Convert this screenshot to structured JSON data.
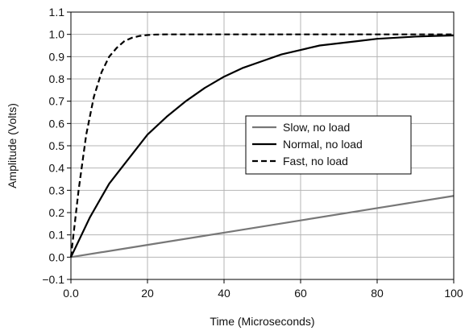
{
  "chart_data": {
    "type": "line",
    "title": "",
    "xlabel": "Time (Microseconds)",
    "ylabel": "Amplitude (Volts)",
    "xlim": [
      0,
      100
    ],
    "ylim": [
      -0.1,
      1.1
    ],
    "xticks": [
      0,
      20,
      40,
      60,
      80,
      100
    ],
    "xtick_labels": [
      "0.0",
      "20",
      "40",
      "60",
      "80",
      "100"
    ],
    "yticks": [
      -0.1,
      0.0,
      0.1,
      0.2,
      0.3,
      0.4,
      0.5,
      0.6,
      0.7,
      0.8,
      0.9,
      1.0,
      1.1
    ],
    "ytick_labels": [
      "−0.1",
      "0.0",
      "0.1",
      "0.2",
      "0.3",
      "0.4",
      "0.5",
      "0.6",
      "0.7",
      "0.8",
      "0.9",
      "1.0",
      "1.1"
    ],
    "grid": true,
    "legend_position": "center-right",
    "series": [
      {
        "name": "Slow, no load",
        "color": "#777777",
        "dash": "solid",
        "x": [
          0,
          20,
          40,
          60,
          80,
          100
        ],
        "y": [
          0.0,
          0.055,
          0.11,
          0.165,
          0.22,
          0.275
        ]
      },
      {
        "name": "Normal, no load",
        "color": "#000000",
        "dash": "solid",
        "x": [
          0,
          5,
          10,
          15,
          20,
          25,
          30,
          35,
          40,
          45,
          50,
          55,
          60,
          65,
          70,
          75,
          80,
          85,
          90,
          95,
          100
        ],
        "y": [
          0.0,
          0.18,
          0.33,
          0.44,
          0.55,
          0.63,
          0.7,
          0.76,
          0.81,
          0.85,
          0.88,
          0.91,
          0.93,
          0.95,
          0.96,
          0.97,
          0.98,
          0.985,
          0.99,
          0.993,
          0.995
        ]
      },
      {
        "name": "Fast, no load",
        "color": "#000000",
        "dash": "dashed",
        "x": [
          0,
          2,
          4,
          6,
          8,
          10,
          12,
          14,
          16,
          18,
          20,
          22,
          25,
          30,
          40,
          50,
          60,
          70,
          80,
          90,
          100
        ],
        "y": [
          0.0,
          0.3,
          0.55,
          0.72,
          0.83,
          0.9,
          0.94,
          0.97,
          0.985,
          0.993,
          0.997,
          0.999,
          1.0,
          1.0,
          1.0,
          1.0,
          1.0,
          1.0,
          1.0,
          1.0,
          1.0
        ]
      }
    ]
  }
}
